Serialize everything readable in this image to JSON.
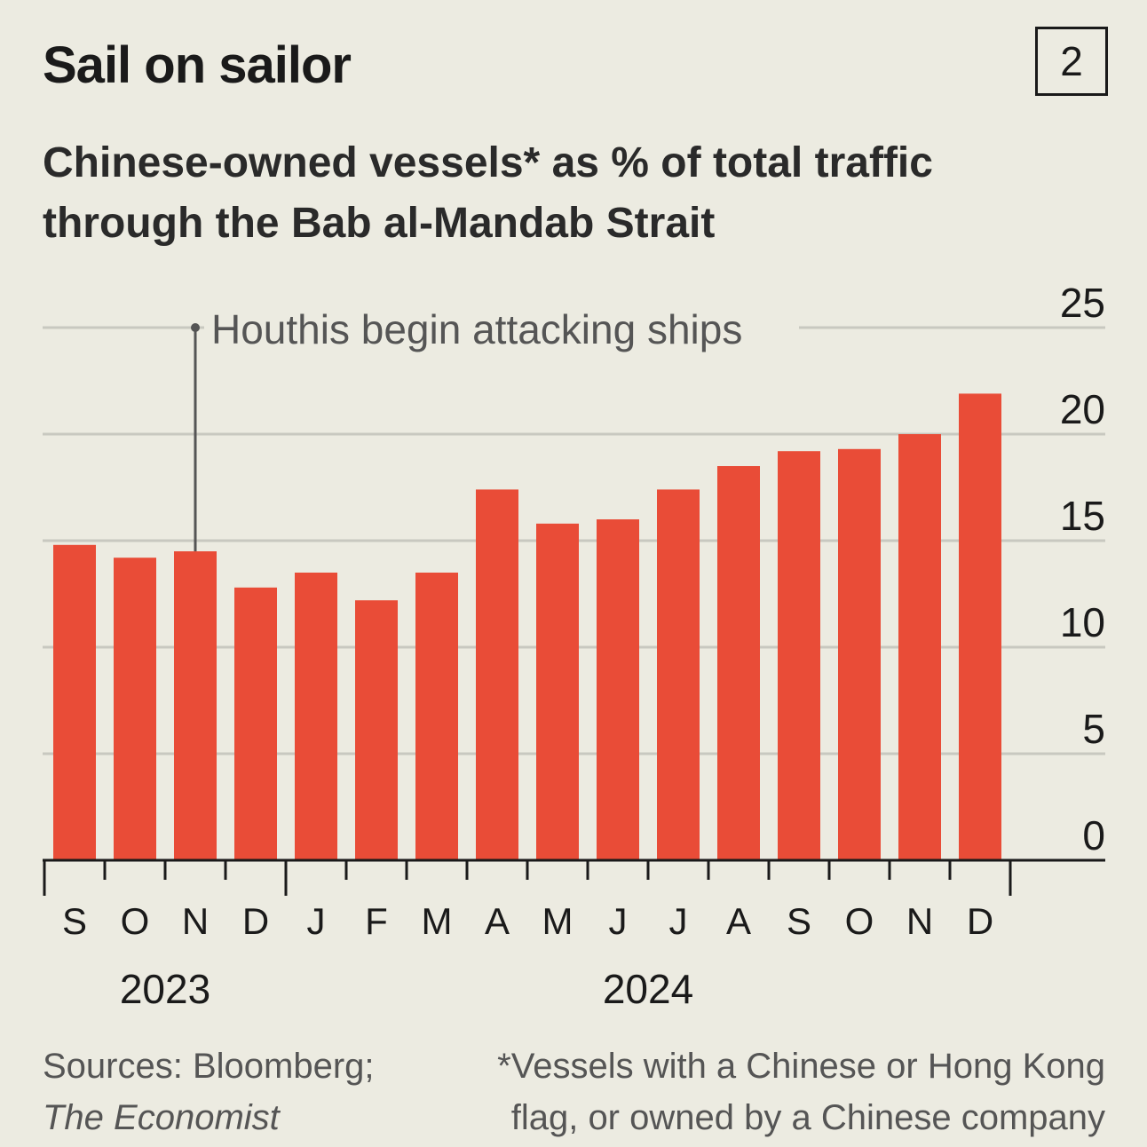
{
  "title": "Sail on sailor",
  "chart_number": "2",
  "subtitle": "Chinese-owned vessels* as % of total traffic through the Bab al-Mandab Strait",
  "sources_prefix": "Sources: Bloomberg;",
  "sources_italic": "The Economist",
  "footnote_line1": "*Vessels with a Chinese or Hong Kong",
  "footnote_line2": "flag, or owned by a Chinese company",
  "colors": {
    "bar": "#e94c37",
    "background": "#ecebe1",
    "grid": "#c8c8c0"
  },
  "chart_data": {
    "type": "bar",
    "categories": [
      "S",
      "O",
      "N",
      "D",
      "J",
      "F",
      "M",
      "A",
      "M",
      "J",
      "J",
      "A",
      "S",
      "O",
      "N",
      "D"
    ],
    "years": [
      {
        "label": "2023",
        "months": [
          "S",
          "O",
          "N",
          "D"
        ]
      },
      {
        "label": "2024",
        "months": [
          "J",
          "F",
          "M",
          "A",
          "M",
          "J",
          "J",
          "A",
          "S",
          "O",
          "N",
          "D"
        ]
      }
    ],
    "values": [
      14.8,
      14.2,
      14.5,
      12.8,
      13.5,
      12.2,
      13.5,
      17.4,
      15.8,
      16.0,
      17.4,
      18.5,
      19.2,
      19.3,
      20.0,
      21.9
    ],
    "ylim": [
      0,
      25
    ],
    "yticks": [
      0,
      5,
      10,
      15,
      20,
      25
    ],
    "grid": true,
    "y_axis_side": "right",
    "annotation": {
      "text": "Houthis begin attacking ships",
      "category_index": 2
    }
  }
}
